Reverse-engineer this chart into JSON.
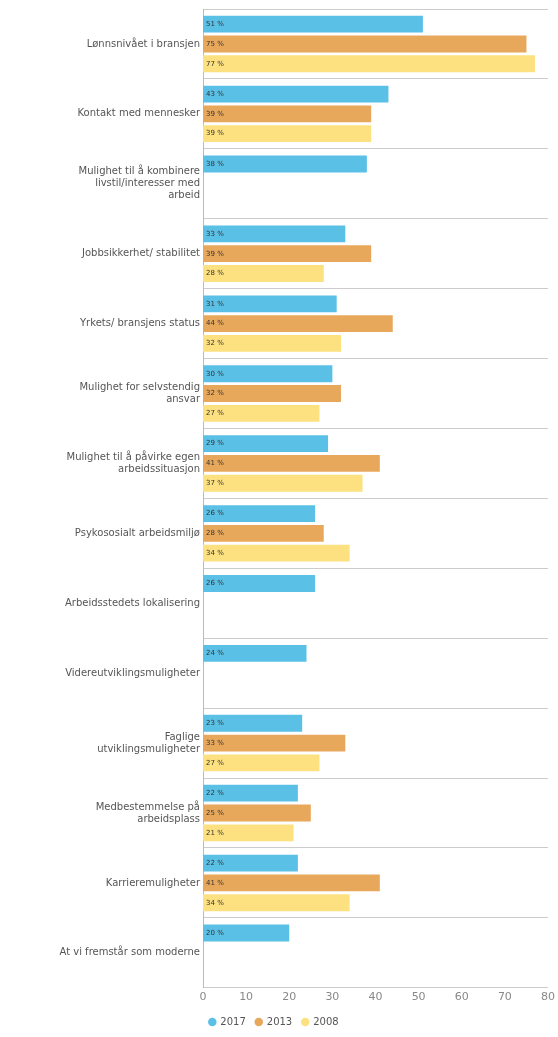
{
  "chart_data": {
    "type": "bar",
    "orientation": "horizontal",
    "categories": [
      "Lønnsnivået i bransjen",
      "Kontakt med mennesker",
      "Mulighet til å kombinere livstil/interesser med arbeid",
      "Jobbsikkerhet/ stabilitet",
      "Yrkets/ bransjens status",
      "Mulighet for selvstendig ansvar",
      "Mulighet til å påvirke egen arbeidssituasjon",
      "Psykososialt arbeidsmiljø",
      "Arbeidsstedets lokalisering",
      "Videreutviklingsmuligheter",
      "Faglige utviklingsmuligheter",
      "Medbestemmelse på arbeidsplass",
      "Karrieremuligheter",
      "At vi fremstår som moderne"
    ],
    "series": [
      {
        "name": "2017",
        "color": "#5bc0e6",
        "values": [
          51,
          43,
          38,
          33,
          31,
          30,
          29,
          26,
          26,
          24,
          23,
          22,
          22,
          20
        ],
        "value_labels": [
          "51 %",
          "43 %",
          "38 %",
          "33 %",
          "31 %",
          "30 %",
          "29 %",
          "26 %",
          "26 %",
          "24 %",
          "23 %",
          "22 %",
          "22 %",
          "20 %"
        ]
      },
      {
        "name": "2013",
        "color": "#e8a85c",
        "values": [
          75,
          39,
          null,
          39,
          44,
          32,
          41,
          28,
          null,
          null,
          33,
          25,
          41,
          null
        ],
        "value_labels": [
          "75 %",
          "39 %",
          null,
          "39 %",
          "44 %",
          "32 %",
          "41 %",
          "28 %",
          null,
          null,
          "33 %",
          "25 %",
          "41 %",
          null
        ]
      },
      {
        "name": "2008",
        "color": "#fde07f",
        "values": [
          77,
          39,
          null,
          28,
          32,
          27,
          37,
          34,
          null,
          null,
          27,
          21,
          34,
          null
        ],
        "value_labels": [
          "77 %",
          "39 %",
          null,
          "28 %",
          "32 %",
          "27 %",
          "37 %",
          "34 %",
          null,
          null,
          "27 %",
          "21 %",
          "34 %",
          null
        ]
      }
    ],
    "xlim": [
      0,
      80
    ],
    "xticks": [
      0,
      10,
      20,
      30,
      40,
      50,
      60,
      70,
      80
    ],
    "grid": "y",
    "legend": "bottom"
  }
}
